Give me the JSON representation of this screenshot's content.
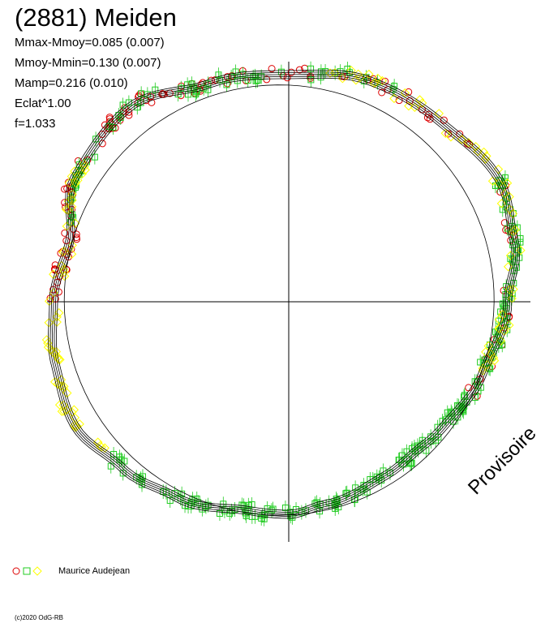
{
  "title": "(2881) Meiden",
  "stats": [
    "Mmax-Mmoy=0.085 (0.007)",
    "Mmoy-Mmin=0.130 (0.007)",
    "Mamp=0.216 (0.010)",
    "Eclat^1.00",
    "f=1.033"
  ],
  "watermark": "Provisoire",
  "legend": {
    "author": "Maurice Audejean"
  },
  "footer": "(c)2020 OdG-RB",
  "chart_data": {
    "type": "scatter",
    "title": "(2881) Meiden",
    "subtitle": "",
    "coordinate": "polar",
    "description_free": true,
    "angle_range_deg": [
      0,
      360
    ],
    "radial_max": 1.0,
    "grid": false,
    "axes": "cross",
    "series": [
      {
        "name": "",
        "marker": "circle",
        "color": "#dd0000"
      },
      {
        "name": "",
        "marker": "square",
        "color": "#22cc22"
      },
      {
        "name": "",
        "marker": "diamond",
        "color": "#ffff00"
      }
    ],
    "fit_curves": 5,
    "reference_circle": true
  }
}
